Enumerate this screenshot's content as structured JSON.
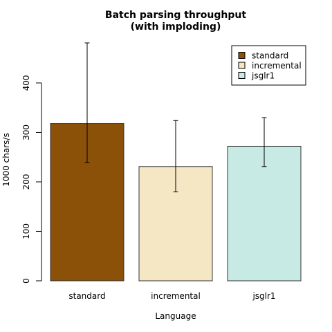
{
  "chart_data": {
    "type": "bar",
    "title": [
      "Batch parsing throughput",
      "(with imploding)"
    ],
    "xlabel": "Language",
    "ylabel": "1000 chars/s",
    "categories": [
      "standard",
      "incremental",
      "jsglr1"
    ],
    "values": [
      318,
      231,
      272
    ],
    "error_low": [
      239,
      180,
      231
    ],
    "error_high": [
      481,
      324,
      330
    ],
    "colors": [
      "#8B5108",
      "#F5E7C3",
      "#C8EAE5"
    ],
    "ylim": [
      0,
      481
    ],
    "yticks": [
      0,
      100,
      200,
      300,
      400
    ],
    "grid": false,
    "legend": {
      "position": "top-right",
      "entries": [
        {
          "label": "standard",
          "color": "#8B5108"
        },
        {
          "label": "incremental",
          "color": "#F5E7C3"
        },
        {
          "label": "jsglr1",
          "color": "#C8EAE5"
        }
      ]
    }
  }
}
